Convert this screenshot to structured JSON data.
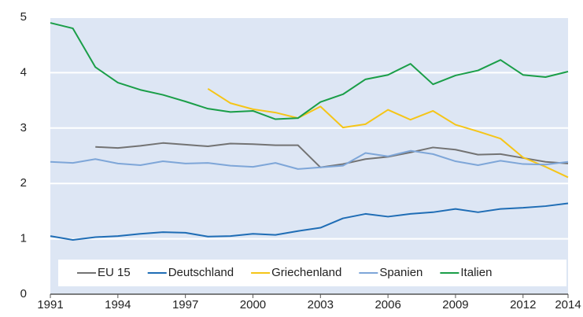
{
  "chart_data": {
    "type": "line",
    "x": [
      1991,
      1992,
      1993,
      1994,
      1995,
      1996,
      1997,
      1998,
      1999,
      2000,
      2001,
      2002,
      2003,
      2004,
      2005,
      2006,
      2007,
      2008,
      2009,
      2010,
      2011,
      2012,
      2013,
      2014
    ],
    "series": [
      {
        "name": "EU 15",
        "color": "#737373",
        "values": [
          null,
          null,
          2.66,
          2.64,
          2.68,
          2.73,
          2.7,
          2.67,
          2.72,
          2.71,
          2.69,
          2.69,
          2.29,
          2.35,
          2.44,
          2.48,
          2.56,
          2.65,
          2.61,
          2.52,
          2.53,
          2.46,
          2.39,
          2.36
        ]
      },
      {
        "name": "Deutschland",
        "color": "#1f6db5",
        "values": [
          1.05,
          0.98,
          1.03,
          1.05,
          1.09,
          1.12,
          1.11,
          1.04,
          1.05,
          1.09,
          1.07,
          1.14,
          1.2,
          1.37,
          1.45,
          1.4,
          1.45,
          1.48,
          1.54,
          1.48,
          1.54,
          1.56,
          1.59,
          1.64
        ]
      },
      {
        "name": "Griechenland",
        "color": "#f5c518",
        "values": [
          null,
          null,
          null,
          null,
          null,
          null,
          null,
          3.71,
          3.45,
          3.34,
          3.28,
          3.18,
          3.39,
          3.01,
          3.07,
          3.33,
          3.15,
          3.31,
          3.06,
          2.94,
          2.81,
          2.47,
          2.3,
          2.11
        ]
      },
      {
        "name": "Spanien",
        "color": "#7ea6d8",
        "values": [
          2.39,
          2.37,
          2.44,
          2.36,
          2.33,
          2.4,
          2.36,
          2.37,
          2.32,
          2.3,
          2.37,
          2.26,
          2.29,
          2.32,
          2.55,
          2.49,
          2.59,
          2.53,
          2.4,
          2.33,
          2.41,
          2.35,
          2.34,
          2.39
        ]
      },
      {
        "name": "Italien",
        "color": "#1a9e48",
        "values": [
          4.9,
          4.8,
          4.1,
          3.82,
          3.69,
          3.6,
          3.48,
          3.35,
          3.29,
          3.31,
          3.16,
          3.18,
          3.47,
          3.61,
          3.88,
          3.96,
          4.16,
          3.79,
          3.95,
          4.04,
          4.23,
          3.96,
          3.92,
          4.02
        ]
      }
    ],
    "xlim": [
      1991,
      2014
    ],
    "xticks": [
      1991,
      1994,
      1997,
      2000,
      2003,
      2006,
      2009,
      2012,
      2014
    ],
    "ylim": [
      0,
      5
    ],
    "yticks": [
      0,
      1,
      2,
      3,
      4,
      5
    ],
    "grid": true,
    "legend": "bottom"
  }
}
